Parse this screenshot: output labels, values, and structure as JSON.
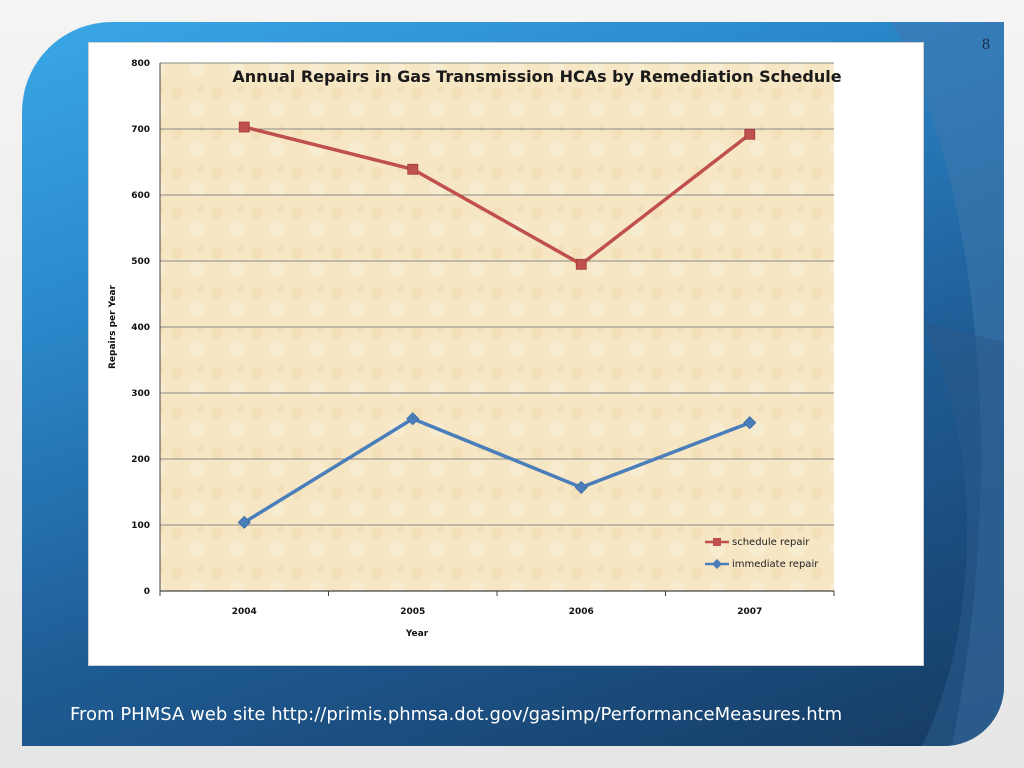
{
  "slide": {
    "page_number": "8",
    "footer": "From PHMSA web site http://primis.phmsa.dot.gov/gasimp/PerformanceMeasures.htm"
  },
  "colors": {
    "schedule": "#c0504d",
    "immediate": "#4a7ebb",
    "plot_bg": "#f7e7c4",
    "grid": "#8a8a8a"
  },
  "chart_data": {
    "type": "line",
    "title": "Annual Repairs in Gas Transmission HCAs by Remediation Schedule",
    "xlabel": "Year",
    "ylabel": "Repairs per Year",
    "categories": [
      "2004",
      "2005",
      "2006",
      "2007"
    ],
    "series": [
      {
        "name": "schedule repair",
        "values": [
          703,
          639,
          495,
          692
        ],
        "marker": "square"
      },
      {
        "name": "immediate repair",
        "values": [
          104,
          261,
          157,
          255
        ],
        "marker": "diamond"
      }
    ],
    "ylim": [
      0,
      800
    ],
    "yticks": [
      0,
      100,
      200,
      300,
      400,
      500,
      600,
      700,
      800
    ],
    "grid": true,
    "legend_position": "bottom-right"
  }
}
